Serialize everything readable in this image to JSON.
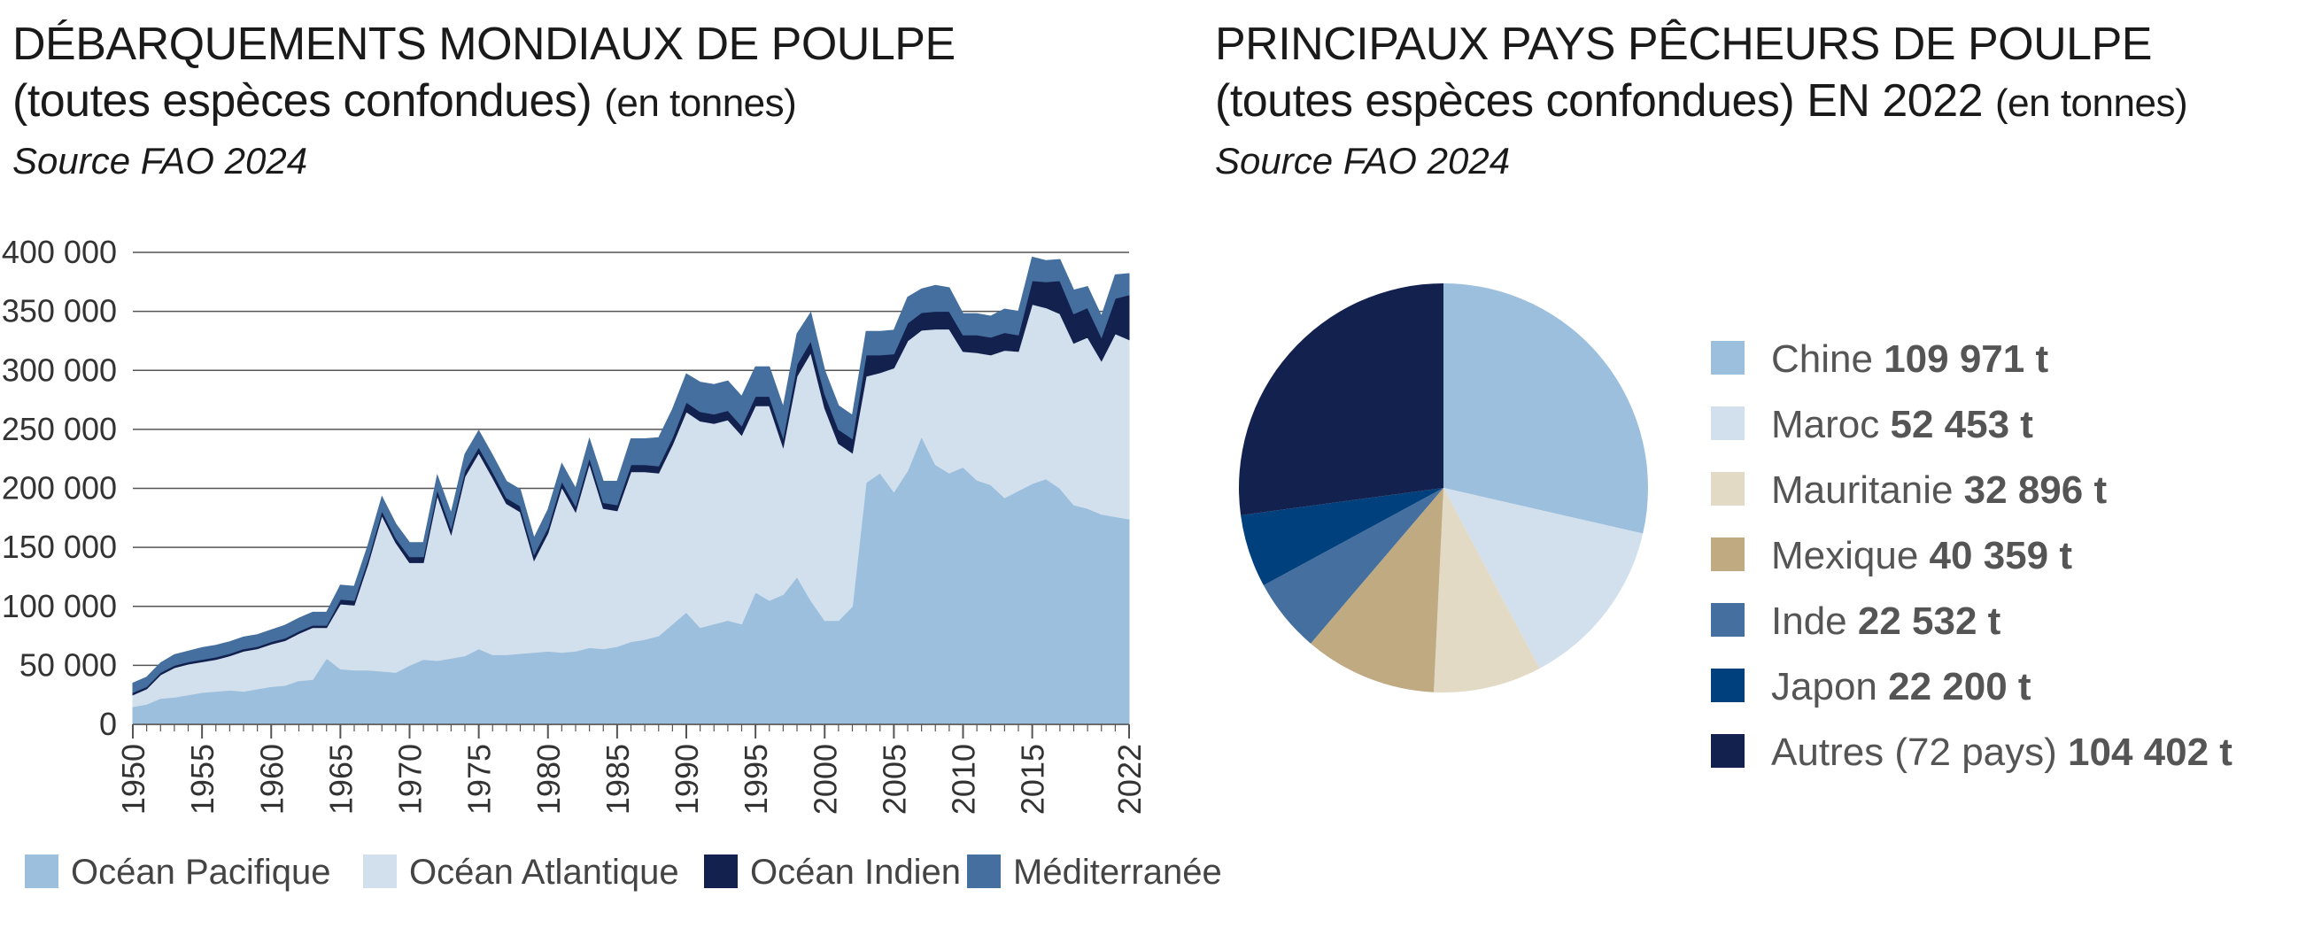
{
  "left": {
    "title_line1": "DÉBARQUEMENTS MONDIAUX DE POULPE",
    "title_line2": "(toutes espèces confondues)",
    "title_unit": "(en tonnes)",
    "source": "Source FAO 2024"
  },
  "right": {
    "title_line1": "PRINCIPAUX PAYS PÊCHEURS DE POULPE",
    "title_line2": "(toutes espèces confondues) EN 2022",
    "title_unit": "(en tonnes)",
    "source": "Source FAO 2024"
  },
  "chart_data": [
    {
      "type": "area",
      "stacked": true,
      "ylim": [
        0,
        400000
      ],
      "yticks": [
        0,
        50000,
        100000,
        150000,
        200000,
        250000,
        300000,
        350000,
        400000
      ],
      "ytick_labels": [
        "0",
        "50 000",
        "100 000",
        "150 000",
        "200 000",
        "250 000",
        "300 000",
        "350 000",
        "400 000"
      ],
      "xtick_labels": [
        "1950",
        "1955",
        "1960",
        "1965",
        "1970",
        "1975",
        "1980",
        "1985",
        "1990",
        "1995",
        "2000",
        "2005",
        "2010",
        "2015",
        "2022"
      ],
      "xticks": [
        1950,
        1955,
        1960,
        1965,
        1970,
        1975,
        1980,
        1985,
        1990,
        1995,
        2000,
        2005,
        2010,
        2015,
        2022
      ],
      "xlim": [
        1950,
        2022
      ],
      "grid": "horizontal",
      "legend": "bottom",
      "x": [
        1950,
        1951,
        1952,
        1953,
        1954,
        1955,
        1956,
        1957,
        1958,
        1959,
        1960,
        1961,
        1962,
        1963,
        1964,
        1965,
        1966,
        1967,
        1968,
        1969,
        1970,
        1971,
        1972,
        1973,
        1974,
        1975,
        1976,
        1977,
        1978,
        1979,
        1980,
        1981,
        1982,
        1983,
        1984,
        1985,
        1986,
        1987,
        1988,
        1989,
        1990,
        1991,
        1992,
        1993,
        1994,
        1995,
        1996,
        1997,
        1998,
        1999,
        2000,
        2001,
        2002,
        2003,
        2004,
        2005,
        2006,
        2007,
        2008,
        2009,
        2010,
        2011,
        2012,
        2013,
        2014,
        2015,
        2016,
        2017,
        2018,
        2019,
        2020,
        2021,
        2022
      ],
      "series": [
        {
          "name": "Océan Pacifique",
          "color": "#9bbfdc",
          "values": [
            15000,
            17000,
            22000,
            23000,
            25000,
            27000,
            28000,
            29000,
            28000,
            30000,
            32000,
            33000,
            37000,
            38000,
            56000,
            47000,
            46000,
            46000,
            45000,
            44000,
            50000,
            55000,
            54000,
            56000,
            58000,
            64000,
            59000,
            59000,
            60000,
            61000,
            62000,
            61000,
            62000,
            65000,
            64000,
            66000,
            70000,
            72000,
            75000,
            85000,
            95000,
            82000,
            85000,
            88000,
            85000,
            112000,
            105000,
            110000,
            125000,
            105000,
            88000,
            88000,
            100000,
            205000,
            213000,
            197000,
            215000,
            244000,
            220000,
            213000,
            218000,
            207000,
            203000,
            192000,
            198000,
            204000,
            208000,
            200000,
            186000,
            183000,
            178000,
            176000,
            174000
          ]
        },
        {
          "name": "Océan Atlantique",
          "color": "#d2e0ee",
          "values": [
            10000,
            13000,
            20000,
            25000,
            26000,
            26000,
            27000,
            29000,
            34000,
            34000,
            36000,
            38000,
            40000,
            44000,
            26000,
            55000,
            55000,
            90000,
            132000,
            110000,
            87000,
            82000,
            140000,
            105000,
            152000,
            166000,
            150000,
            128000,
            120000,
            78000,
            100000,
            140000,
            118000,
            156000,
            119000,
            115000,
            144000,
            142000,
            138000,
            152000,
            170000,
            175000,
            170000,
            170000,
            160000,
            158000,
            165000,
            125000,
            170000,
            210000,
            180000,
            150000,
            130000,
            90000,
            85000,
            105000,
            110000,
            90000,
            115000,
            122000,
            98000,
            108000,
            110000,
            125000,
            118000,
            152000,
            145000,
            148000,
            137000,
            145000,
            130000,
            155000,
            152000
          ]
        },
        {
          "name": "Océan Indien",
          "color": "#13214f",
          "values": [
            2000,
            2000,
            2000,
            2000,
            2000,
            2000,
            2000,
            2000,
            2000,
            2000,
            2000,
            2000,
            2000,
            2000,
            2000,
            4000,
            4000,
            4000,
            4000,
            4000,
            5000,
            5000,
            5000,
            5000,
            5000,
            5000,
            5000,
            5000,
            5000,
            5000,
            5000,
            5000,
            5000,
            5000,
            5000,
            5000,
            6000,
            6000,
            6000,
            6000,
            8000,
            8000,
            8000,
            8000,
            8000,
            8000,
            8000,
            8000,
            10000,
            10000,
            12000,
            12000,
            12000,
            18000,
            15000,
            12000,
            15000,
            15000,
            15000,
            15000,
            14000,
            15000,
            15000,
            15000,
            14000,
            20000,
            22000,
            28000,
            25000,
            25000,
            20000,
            30000,
            38000
          ]
        },
        {
          "name": "Méditerranée",
          "color": "#456f9e",
          "values": [
            8000,
            8000,
            8000,
            9000,
            9000,
            10000,
            10000,
            10000,
            10000,
            10000,
            10000,
            11000,
            11000,
            11000,
            11000,
            12000,
            12000,
            12000,
            12000,
            12000,
            12000,
            12000,
            12000,
            13000,
            14000,
            14000,
            14000,
            14000,
            14000,
            14000,
            15000,
            15000,
            15000,
            16000,
            18000,
            20000,
            22000,
            22000,
            24000,
            24000,
            24000,
            25000,
            25000,
            25000,
            25000,
            25000,
            25000,
            26000,
            26000,
            24000,
            20000,
            20000,
            20000,
            20000,
            20000,
            20000,
            22000,
            20000,
            22000,
            20000,
            18000,
            18000,
            18000,
            20000,
            20000,
            20000,
            18000,
            18000,
            20000,
            18000,
            18000,
            20000,
            18000
          ]
        }
      ]
    },
    {
      "type": "pie",
      "legend": "right",
      "slices": [
        {
          "name": "Chine",
          "label": "109 971 t",
          "value": 109971,
          "color": "#9bbfdc"
        },
        {
          "name": "Maroc",
          "label": "52 453 t",
          "value": 52453,
          "color": "#d2e0ee"
        },
        {
          "name": "Mauritanie",
          "label": "32 896 t",
          "value": 32896,
          "color": "#e3dac6"
        },
        {
          "name": "Mexique",
          "label": "40 359 t",
          "value": 40359,
          "color": "#bfaa82"
        },
        {
          "name": "Inde",
          "label": "22 532 t",
          "value": 22532,
          "color": "#456f9e"
        },
        {
          "name": "Japon",
          "label": "22 200 t",
          "value": 22200,
          "color": "#00407c"
        },
        {
          "name": "Autres (72 pays)",
          "label": "104 402 t",
          "value": 104402,
          "color": "#13214f"
        }
      ]
    }
  ]
}
